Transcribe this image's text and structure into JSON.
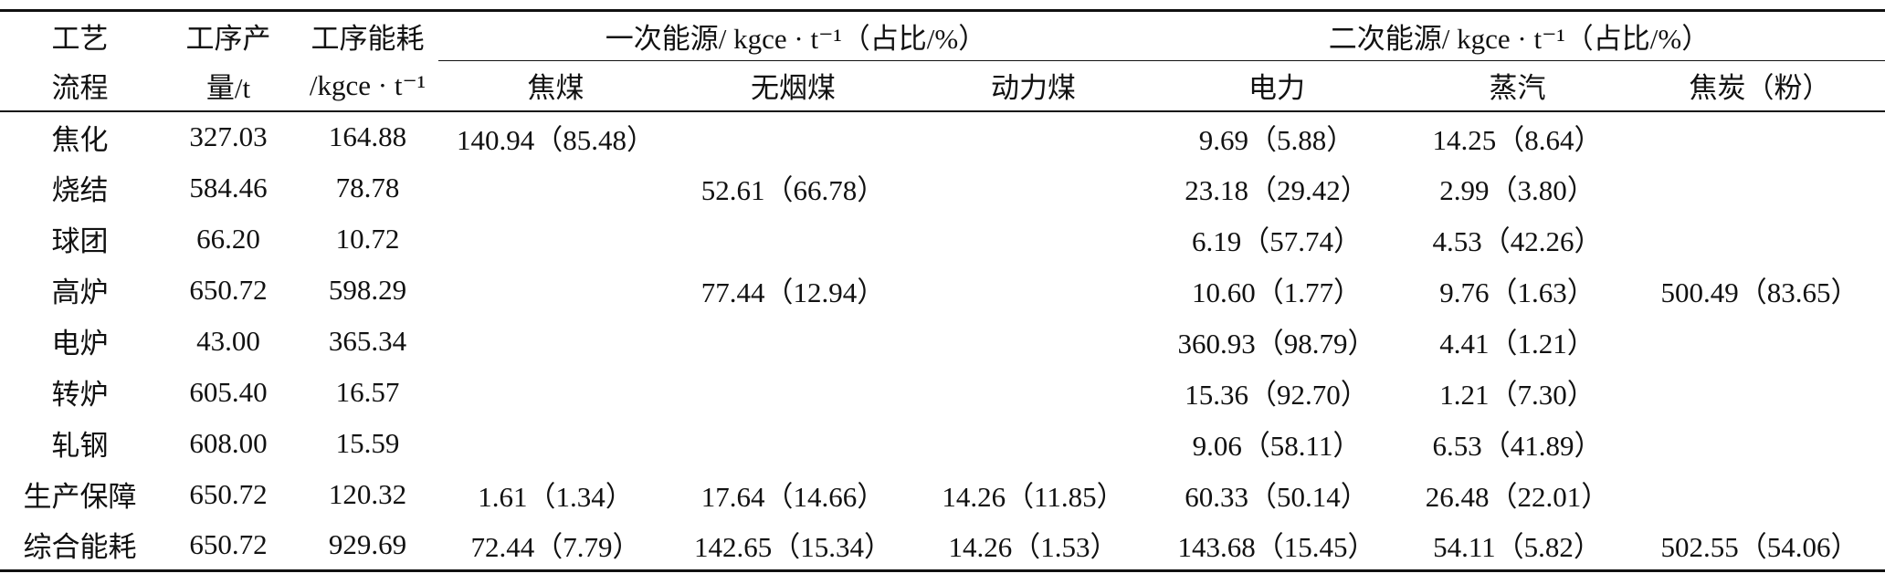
{
  "table": {
    "header": {
      "row1": [
        "工艺",
        "工序产",
        "工序能耗"
      ],
      "row2": [
        "流程",
        "量/t",
        "/kgce · t⁻¹"
      ],
      "groups": [
        "一次能源/ kgce · t⁻¹（占比/%）",
        "二次能源/ kgce · t⁻¹（占比/%）"
      ],
      "subcolumns": [
        "焦煤",
        "无烟煤",
        "动力煤",
        "电力",
        "蒸汽",
        "焦炭（粉）"
      ]
    },
    "rows": [
      [
        "焦化",
        "327.03",
        "164.88",
        "140.94（85.48）",
        null,
        null,
        "9.69（5.88）",
        "14.25（8.64）",
        null
      ],
      [
        "烧结",
        "584.46",
        "78.78",
        null,
        "52.61（66.78）",
        null,
        "23.18（29.42）",
        "2.99（3.80）",
        null
      ],
      [
        "球团",
        "66.20",
        "10.72",
        null,
        null,
        null,
        "6.19（57.74）",
        "4.53（42.26）",
        null
      ],
      [
        "高炉",
        "650.72",
        "598.29",
        null,
        "77.44（12.94）",
        null,
        "10.60（1.77）",
        "9.76（1.63）",
        "500.49（83.65）"
      ],
      [
        "电炉",
        "43.00",
        "365.34",
        null,
        null,
        null,
        "360.93（98.79）",
        "4.41（1.21）",
        null
      ],
      [
        "转炉",
        "605.40",
        "16.57",
        null,
        null,
        null,
        "15.36（92.70）",
        "1.21（7.30）",
        null
      ],
      [
        "轧钢",
        "608.00",
        "15.59",
        null,
        null,
        null,
        "9.06（58.11）",
        "6.53（41.89）",
        null
      ],
      [
        "生产保障",
        "650.72",
        "120.32",
        "1.61（1.34）",
        "17.64（14.66）",
        "14.26（11.85）",
        "60.33（50.14）",
        "26.48（22.01）",
        null
      ],
      [
        "综合能耗",
        "650.72",
        "929.69",
        "72.44（7.79）",
        "142.65（15.34）",
        "14.26（1.53）",
        "143.68（15.45）",
        "54.11（5.82）",
        "502.55（54.06）"
      ]
    ]
  }
}
